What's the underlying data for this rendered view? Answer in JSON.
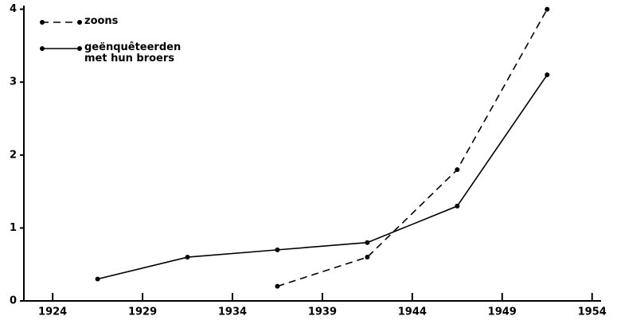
{
  "chart_data": {
    "type": "line",
    "series": [
      {
        "name": "zoons",
        "color": "#000000",
        "dash": true,
        "x": [
          1936.5,
          1941.5,
          1946.5,
          1951.5
        ],
        "values": [
          0.2,
          0.6,
          1.8,
          4.0
        ]
      },
      {
        "name": "geënquêteerden met hun broers",
        "color": "#000000",
        "dash": false,
        "x": [
          1926.5,
          1931.5,
          1936.5,
          1941.5,
          1946.5,
          1951.5
        ],
        "values": [
          0.3,
          0.6,
          0.7,
          0.8,
          1.3,
          3.1
        ]
      }
    ],
    "xlim": [
      1922.4,
      1954.5
    ],
    "xticks": [
      1924,
      1929,
      1934,
      1939,
      1944,
      1949,
      1954
    ],
    "ylim": [
      0,
      4.05
    ],
    "yticks": [
      0,
      1,
      2,
      3,
      4
    ],
    "grid": false,
    "legend": "upper left"
  }
}
